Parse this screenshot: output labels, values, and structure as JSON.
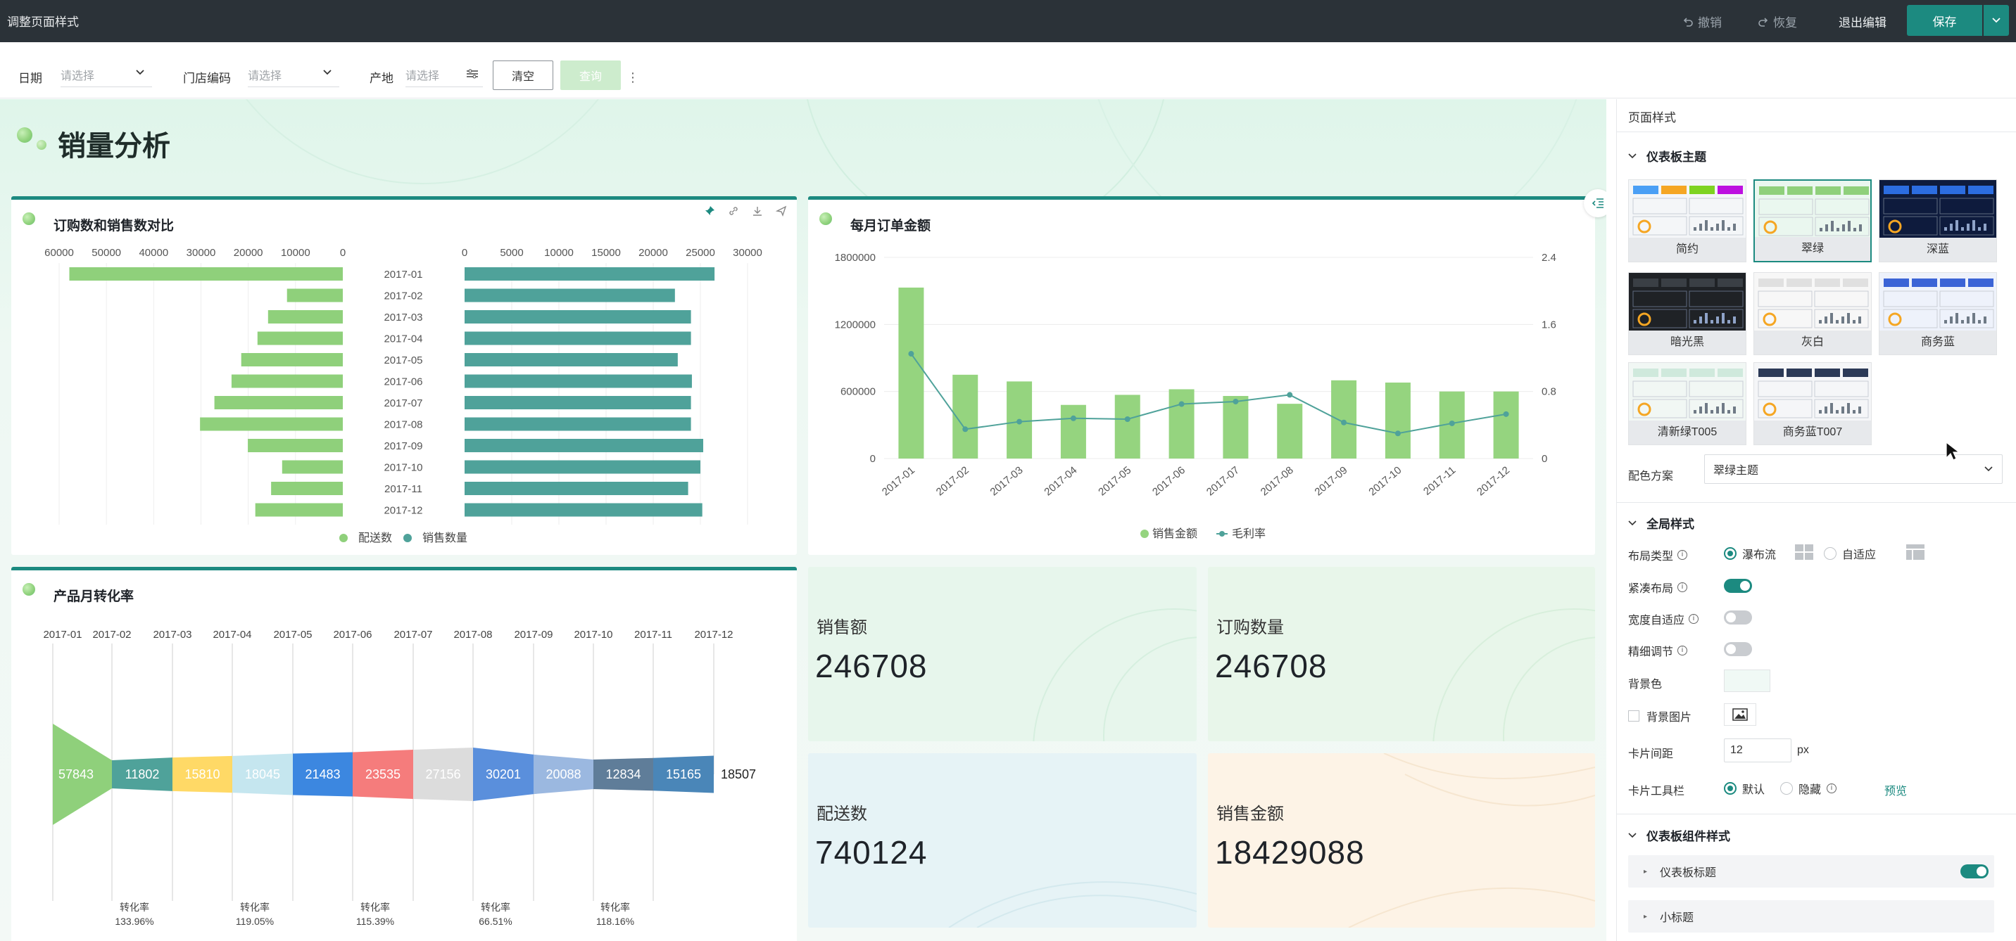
{
  "topbar": {
    "title": "调整页面样式",
    "undo": "撤销",
    "redo": "恢复",
    "exit": "退出编辑",
    "save": "保存"
  },
  "filters": {
    "date_label": "日期",
    "date_placeholder": "请选择",
    "store_label": "门店编码",
    "store_placeholder": "请选择",
    "origin_label": "产地",
    "origin_placeholder": "请选择",
    "clear": "清空",
    "query": "查询"
  },
  "dashboard": {
    "title": "销量分析"
  },
  "cards": {
    "bar_compare_title": "订购数和销售数对比",
    "monthly_title": "每月订单金额",
    "funnel_title": "产品月转化率"
  },
  "kpis": [
    {
      "label": "销售额",
      "value": "246708",
      "bg": "#e7f6ec"
    },
    {
      "label": "订购数量",
      "value": "246708",
      "bg": "#e8f6ea"
    },
    {
      "label": "配送数",
      "value": "740124",
      "bg": "#e6f3f6"
    },
    {
      "label": "销售金额",
      "value": "18429088",
      "bg": "#fdf3e6"
    }
  ],
  "chart_data": [
    {
      "type": "bar",
      "orientation": "horizontal-mirrored",
      "categories": [
        "2017-01",
        "2017-02",
        "2017-03",
        "2017-04",
        "2017-05",
        "2017-06",
        "2017-07",
        "2017-08",
        "2017-09",
        "2017-10",
        "2017-11",
        "2017-12"
      ],
      "left_axis_ticks": [
        "60000",
        "50000",
        "40000",
        "30000",
        "20000",
        "10000",
        "0"
      ],
      "right_axis_ticks": [
        "0",
        "5000",
        "10000",
        "15000",
        "20000",
        "25000",
        "30000"
      ],
      "series": [
        {
          "name": "配送数",
          "color": "#8fd07b",
          "values": [
            57843,
            11802,
            15810,
            18045,
            21483,
            23535,
            27156,
            30201,
            20088,
            12834,
            15165,
            18507
          ]
        },
        {
          "name": "销售数量",
          "color": "#4fa29a",
          "values": [
            26500,
            22300,
            24000,
            24000,
            22600,
            24100,
            24000,
            24000,
            25300,
            25000,
            23700,
            25200
          ]
        }
      ],
      "left_range": [
        0,
        60000
      ],
      "right_range": [
        0,
        30000
      ],
      "legend": "bottom-center"
    },
    {
      "type": "bar",
      "categories": [
        "2017-01",
        "2017-02",
        "2017-03",
        "2017-04",
        "2017-05",
        "2017-06",
        "2017-07",
        "2017-08",
        "2017-09",
        "2017-10",
        "2017-11",
        "2017-12"
      ],
      "left_axis_ticks": [
        "0",
        "600000",
        "1200000",
        "1800000"
      ],
      "right_axis_ticks": [
        "0",
        "0.8",
        "1.6",
        "2.4"
      ],
      "ylim": [
        0,
        1800000
      ],
      "y2lim": [
        0,
        2.4
      ],
      "series": [
        {
          "name": "销售金额",
          "type": "bar",
          "color": "#95d47f",
          "values": [
            1530000,
            750000,
            690000,
            480000,
            570000,
            620000,
            560000,
            490000,
            700000,
            680000,
            600000,
            600000
          ]
        },
        {
          "name": "毛利率",
          "type": "line",
          "color": "#4fa29a",
          "values": [
            1.25,
            0.35,
            0.44,
            0.48,
            0.47,
            0.65,
            0.68,
            0.76,
            0.43,
            0.3,
            0.42,
            0.53
          ]
        }
      ],
      "legend": "bottom-center"
    },
    {
      "type": "funnel",
      "categories": [
        "2017-01",
        "2017-02",
        "2017-03",
        "2017-04",
        "2017-05",
        "2017-06",
        "2017-07",
        "2017-08",
        "2017-09",
        "2017-10",
        "2017-11",
        "2017-12"
      ],
      "values": [
        57843,
        11802,
        15810,
        18045,
        21483,
        23535,
        27156,
        30201,
        20088,
        12834,
        15165,
        18507
      ],
      "colors": [
        "#8fd07b",
        "#4fa29a",
        "#ffd966",
        "#c5e6ef",
        "#3c87e0",
        "#f57c7c",
        "#dcdcdc",
        "#5a8fdc",
        "#9bb8e0",
        "#5f7d99",
        "#4a86b8"
      ],
      "conversion_label": "转化率",
      "conversions": [
        "133.96%",
        "119.05%",
        "115.39%",
        "66.51%",
        "118.16%"
      ]
    }
  ],
  "panel": {
    "title": "页面样式",
    "theme_section": "仪表板主题",
    "themes": [
      "简约",
      "翠绿",
      "深蓝",
      "暗光黑",
      "灰白",
      "商务蓝",
      "清新绿T005",
      "商务蓝T007"
    ],
    "selected_theme": "翠绿",
    "color_scheme_label": "配色方案",
    "color_scheme_value": "翠绿主题",
    "global_section": "全局样式",
    "layout_type_label": "布局类型",
    "layout_waterfall": "瀑布流",
    "layout_adaptive": "自适应",
    "compact_label": "紧凑布局",
    "width_adapt_label": "宽度自适应",
    "fine_tune_label": "精细调节",
    "bg_color_label": "背景色",
    "bg_image_label": "背景图片",
    "card_gap_label": "卡片间距",
    "card_gap_value": "12",
    "card_gap_unit": "px",
    "card_toolbar_label": "卡片工具栏",
    "toolbar_default": "默认",
    "toolbar_hidden": "隐藏",
    "preview": "预览",
    "widget_section": "仪表板组件样式",
    "dashboard_title_row": "仪表板标题",
    "subtitle_row": "小标题",
    "accent": "#1c8a80"
  }
}
